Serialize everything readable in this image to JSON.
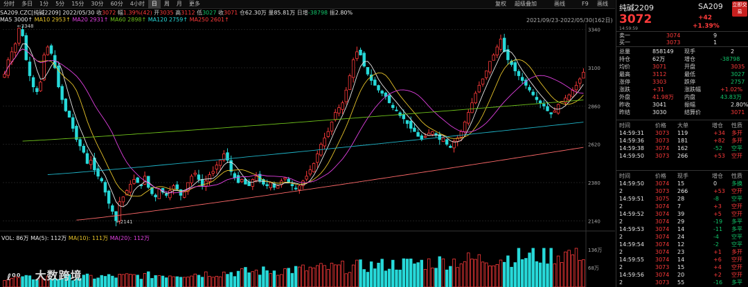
{
  "toolbar": {
    "periods": [
      {
        "label": "分时",
        "active": false
      },
      {
        "label": "多日",
        "active": false
      },
      {
        "label": "1分",
        "active": false
      },
      {
        "label": "5分",
        "active": false
      },
      {
        "label": "15分",
        "active": false
      },
      {
        "label": "30分",
        "active": false
      },
      {
        "label": "60分",
        "active": false
      },
      {
        "label": "4小时",
        "active": false
      },
      {
        "label": "日",
        "active": true
      },
      {
        "label": "周",
        "active": false
      },
      {
        "label": "月",
        "active": false
      },
      {
        "label": "更多",
        "active": false
      }
    ],
    "right_tools": [
      "复权",
      "超级叠加",
      "画线",
      "F9",
      "画线"
    ]
  },
  "info": {
    "symbol": "SA209.CZC[纯碱2209]",
    "date": "2022/05/30",
    "close_label": "收",
    "close": "3072",
    "chg_label": "幅",
    "chg": "1.39%(42)",
    "open_label": "开",
    "open": "3035",
    "high_label": "高",
    "high": "3112",
    "low_label": "低",
    "low": "3027",
    "last_label": "收",
    "last": "3071",
    "oi_label": "仓",
    "oi": "62.30万",
    "vol_label": "量",
    "vol": "85.81万",
    "inc_label": "日增",
    "inc": "-38798",
    "amp_label": "振",
    "amp": "2.80%"
  },
  "ma": {
    "ma5": "MA5 3000↑",
    "ma10": "MA10 2953↑",
    "ma20": "MA20 2931↑",
    "ma60": "MA60 2898↑",
    "ma120": "MA120 2759↑",
    "ma250": "MA250 2601↑"
  },
  "range_label": "2021/09/23-2022/05/30(162日)",
  "vol_info": {
    "vol": "VOL: 86万",
    "ma5": "MA(5): 112万",
    "ma10": "MA(10): 111万",
    "ma20": "MA(20): 112万"
  },
  "annotations": {
    "high": "←3348",
    "low": "←2141"
  },
  "colors": {
    "up": "#ff3b3b",
    "down": "#27d9d9",
    "ma5": "#e8e8e8",
    "ma10": "#e6c229",
    "ma20": "#e040e0",
    "ma60": "#6fc21b",
    "ma120": "#1fb5c9",
    "ma250": "#ff6a6a"
  },
  "chart_data": {
    "type": "candlestick",
    "price_axis": {
      "ticks": [
        3340,
        3100,
        2860,
        2620,
        2380,
        2140
      ],
      "min": 2120,
      "max": 3360
    },
    "volume_axis": {
      "ticks": [
        "136万",
        "68万"
      ]
    },
    "x_range": [
      "2021/09/23",
      "2022/05/30"
    ],
    "closes": [
      3060,
      3150,
      3200,
      3250,
      3348,
      3300,
      3150,
      3050,
      2980,
      2950,
      3010,
      3180,
      3230,
      3190,
      3100,
      2980,
      2900,
      2830,
      2790,
      2720,
      2650,
      2610,
      2570,
      2500,
      2520,
      2460,
      2420,
      2390,
      2320,
      2250,
      2200,
      2141,
      2260,
      2290,
      2330,
      2370,
      2400,
      2380,
      2360,
      2420,
      2350,
      2310,
      2290,
      2340,
      2320,
      2300,
      2330,
      2360,
      2340,
      2300,
      2330,
      2380,
      2420,
      2440,
      2400,
      2360,
      2390,
      2430,
      2450,
      2490,
      2520,
      2560,
      2520,
      2450,
      2410,
      2380,
      2400,
      2370,
      2360,
      2400,
      2420,
      2390,
      2370,
      2360,
      2380,
      2350,
      2360,
      2390,
      2410,
      2380,
      2360,
      2340,
      2360,
      2390,
      2420,
      2460,
      2500,
      2560,
      2620,
      2660,
      2700,
      2760,
      2820,
      2850,
      2880,
      2960,
      3050,
      3150,
      3200,
      3180,
      3110,
      3060,
      3020,
      2990,
      2960,
      2940,
      2920,
      2880,
      2850,
      2830,
      2800,
      2780,
      2750,
      2720,
      2700,
      2670,
      2650,
      2670,
      2690,
      2700,
      2680,
      2650,
      2660,
      2620,
      2600,
      2640,
      2660,
      2700,
      2760,
      2820,
      2880,
      2940,
      2990,
      3030,
      3080,
      3140,
      3180,
      3230,
      3280,
      3200,
      3150,
      3120,
      3080,
      3050,
      3020,
      2990,
      2960,
      2930,
      2900,
      2880,
      2860,
      2830,
      2810,
      2830,
      2870,
      2890,
      2910,
      2930,
      2960,
      2990,
      3030,
      3072
    ],
    "ma_latest": {
      "MA5": 3000,
      "MA10": 2953,
      "MA20": 2931,
      "MA60": 2898,
      "MA120": 2759,
      "MA250": 2601
    },
    "high_mark": 3348,
    "low_mark": 2141
  },
  "panel": {
    "name": "纯碱2209",
    "code": "SA209",
    "price": "3072",
    "change": "+42",
    "change_pct": "+1.39%",
    "time": "14:59:59",
    "trade_btn": "立即交易",
    "ask": {
      "label": "卖一",
      "price": "3074",
      "qty": "9"
    },
    "bid": {
      "label": "买一",
      "price": "3073",
      "qty": "1"
    },
    "stats": [
      [
        "总量",
        "858149",
        "现手",
        "2"
      ],
      [
        "持仓",
        "62万",
        "增仓",
        "-38798"
      ],
      [
        "均价",
        "3071",
        "开盘",
        "3035"
      ],
      [
        "最高",
        "3112",
        "最低",
        "3027"
      ],
      [
        "涨停",
        "3303",
        "跌停",
        "2757"
      ],
      [
        "涨跌",
        "+31",
        "涨跌幅",
        "+1.02%"
      ],
      [
        "外盘",
        "41.98万",
        "内盘",
        "43.83万"
      ],
      [
        "昨收",
        "3041",
        "振幅",
        "2.80%"
      ],
      [
        "昨结",
        "3030",
        "结算价",
        "3071"
      ]
    ],
    "ticks_header": [
      "时间",
      "价格",
      "大单",
      "增仓",
      "性质"
    ],
    "big_ticks": [
      [
        "14:59:31",
        "3073",
        "119",
        "+34",
        "多开"
      ],
      [
        "14:59:36",
        "3073",
        "181",
        "+82",
        "多开"
      ],
      [
        "14:59:38",
        "3074",
        "162",
        "-52",
        "空平"
      ],
      [
        "14:59:50",
        "3073",
        "266",
        "+53",
        "空开"
      ]
    ],
    "trades_header": [
      "时间",
      "价格",
      "现手",
      "增仓",
      "性质"
    ],
    "trades": [
      [
        "14:59:50",
        "3074",
        "15",
        "0",
        "多换"
      ],
      [
        "2",
        "3073",
        "266",
        "+53",
        "空开"
      ],
      [
        "14:59:51",
        "3075",
        "28",
        "-8",
        "空平"
      ],
      [
        "2",
        "3074",
        "7",
        "+3",
        "空开"
      ],
      [
        "14:59:52",
        "3074",
        "39",
        "+5",
        "空开"
      ],
      [
        "2",
        "3074",
        "29",
        "-19",
        "多平"
      ],
      [
        "14:59:53",
        "3074",
        "14",
        "-11",
        "多平"
      ],
      [
        "2",
        "3074",
        "24",
        "-4",
        "空平"
      ],
      [
        "14:59:54",
        "3074",
        "12",
        "-2",
        "空平"
      ],
      [
        "2",
        "3074",
        "23",
        "+1",
        "多开"
      ],
      [
        "14:59:55",
        "3074",
        "14",
        "+6",
        "空开"
      ],
      [
        "2",
        "3073",
        "15",
        "+4",
        "空开"
      ],
      [
        "14:59:56",
        "3074",
        "20",
        "+2",
        "空开"
      ],
      [
        "2",
        "3073",
        "55",
        "-16",
        "多平"
      ]
    ]
  },
  "logo": {
    "text": "大数跨境"
  }
}
